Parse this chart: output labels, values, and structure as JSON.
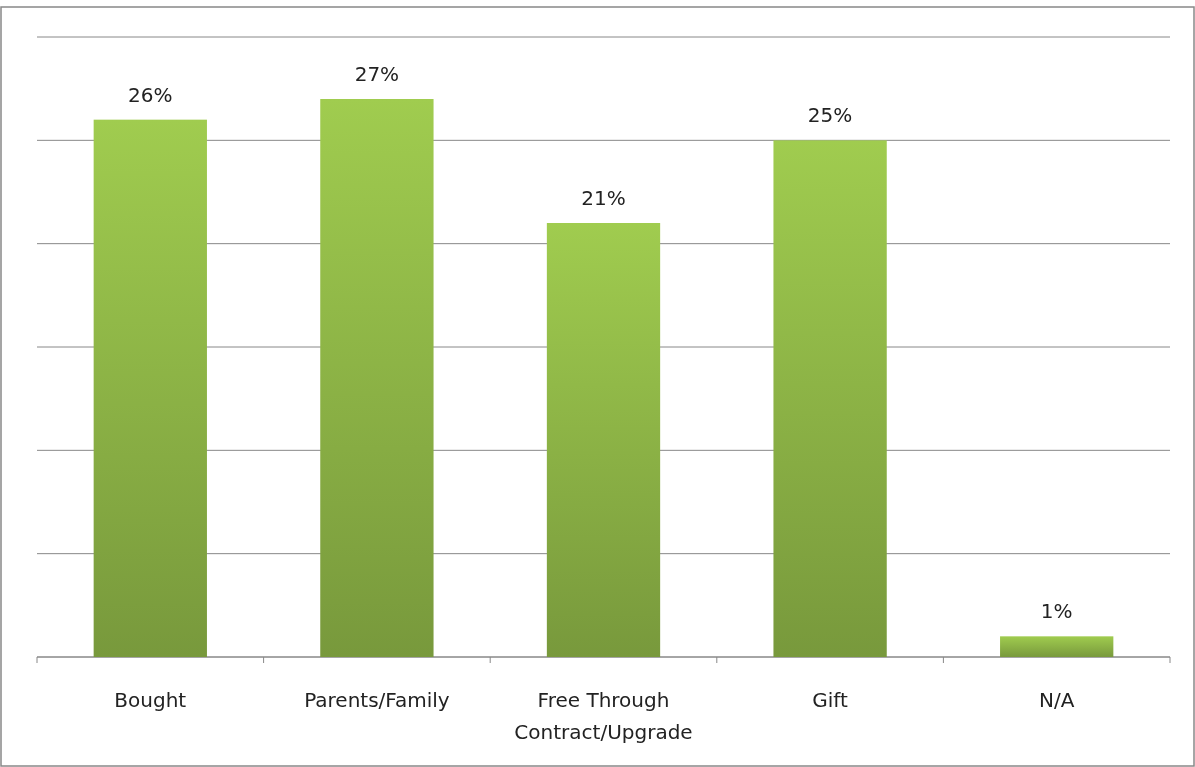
{
  "chart_data": {
    "type": "bar",
    "categories": [
      "Bought",
      "Parents/Family",
      "Free Through Contract/Upgrade",
      "Gift",
      "N/A"
    ],
    "values": [
      26,
      27,
      21,
      25,
      1
    ],
    "color": "#8db446",
    "ylim": [
      0,
      30
    ],
    "yticks": [
      {
        "value": 0,
        "label": null
      },
      {
        "value": 5,
        "label": null
      },
      {
        "value": 10,
        "label": null
      },
      {
        "value": 15,
        "label": null
      },
      {
        "value": 20,
        "label": null
      },
      {
        "value": 25,
        "label": null
      },
      {
        "value": 30,
        "label": null
      }
    ],
    "tick_labels": "x",
    "grid": "y",
    "value_labels": [
      "26%",
      "27%",
      "21%",
      "25%",
      "1%"
    ]
  }
}
